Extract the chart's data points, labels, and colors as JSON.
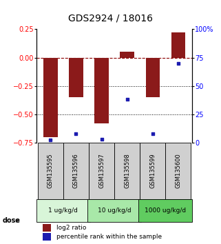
{
  "title": "GDS2924 / 18016",
  "samples": [
    "GSM135595",
    "GSM135596",
    "GSM135597",
    "GSM135598",
    "GSM135599",
    "GSM135600"
  ],
  "log2_ratio": [
    -0.7,
    -0.35,
    -0.58,
    0.05,
    -0.35,
    0.22
  ],
  "percentile_rank": [
    2,
    8,
    3,
    38,
    8,
    70
  ],
  "left_ylim": [
    -0.75,
    0.25
  ],
  "right_ylim": [
    0,
    100
  ],
  "left_yticks": [
    0.25,
    0,
    -0.25,
    -0.5,
    -0.75
  ],
  "right_yticks": [
    100,
    75,
    50,
    25,
    0
  ],
  "right_yticklabels": [
    "100%",
    "75",
    "50",
    "25",
    "0"
  ],
  "hlines_dotted": [
    -0.25,
    -0.5
  ],
  "hline_dashed": 0,
  "bar_color": "#8B1A1A",
  "square_color": "#1C1CB0",
  "bar_width": 0.55,
  "dose_groups": [
    {
      "label": "1 ug/kg/d",
      "color": "#d8f5d8"
    },
    {
      "label": "10 ug/kg/d",
      "color": "#a8e8a8"
    },
    {
      "label": "1000 ug/kg/d",
      "color": "#60cc60"
    }
  ],
  "legend_bar_label": "log2 ratio",
  "legend_square_label": "percentile rank within the sample",
  "dose_label": "dose",
  "sample_box_color": "#d0d0d0",
  "title_fontsize": 10,
  "tick_fontsize": 7,
  "label_fontsize": 7
}
